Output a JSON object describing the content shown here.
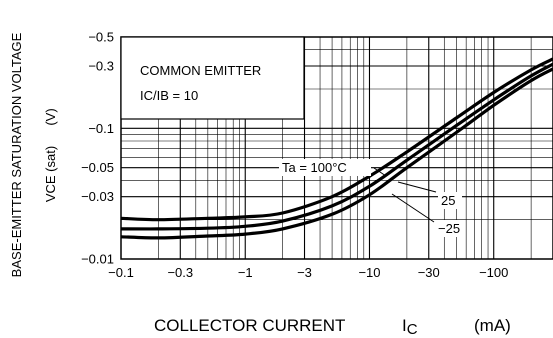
{
  "chart_data": {
    "type": "line",
    "xlabel": "COLLECTOR CURRENT",
    "xlabel_symbol": "IC",
    "xlabel_unit": "(mA)",
    "ylabel_line1": "BASE-EMITTER SATURATION VOLTAGE",
    "ylabel_line2": "VCE (sat)",
    "ylabel_unit": "(V)",
    "x_scale": "log",
    "y_scale": "log",
    "xlim": [
      -0.1,
      -300
    ],
    "ylim": [
      -0.01,
      -0.5
    ],
    "x_ticks": [
      -0.1,
      -0.3,
      -1,
      -3,
      -10,
      -30,
      -100
    ],
    "x_tick_labels": [
      "−0.1",
      "−0.3",
      "−1",
      "−3",
      "−10",
      "−30",
      "−100"
    ],
    "y_ticks": [
      -0.01,
      -0.03,
      -0.05,
      -0.1,
      -0.3,
      -0.5
    ],
    "y_tick_labels": [
      "−0.01",
      "−0.03",
      "−0.05",
      "−0.1",
      "−0.3",
      "−0.5"
    ],
    "grid": true,
    "annotation_box": {
      "line1": "COMMON EMITTER",
      "line2": "IC/IB = 10"
    },
    "series": [
      {
        "name": "Ta = 100°C",
        "x": [
          -0.1,
          -0.2,
          -0.5,
          -1,
          -2,
          -5,
          -10,
          -20,
          -50,
          -100,
          -200,
          -300
        ],
        "y": [
          -0.0205,
          -0.02,
          -0.0205,
          -0.021,
          -0.0225,
          -0.03,
          -0.043,
          -0.066,
          -0.12,
          -0.188,
          -0.28,
          -0.34
        ]
      },
      {
        "name": "25",
        "x": [
          -0.1,
          -0.2,
          -0.5,
          -1,
          -2,
          -5,
          -10,
          -20,
          -50,
          -100,
          -200,
          -300
        ],
        "y": [
          -0.017,
          -0.017,
          -0.0172,
          -0.0178,
          -0.0195,
          -0.0255,
          -0.036,
          -0.057,
          -0.105,
          -0.165,
          -0.252,
          -0.31
        ]
      },
      {
        "name": "−25",
        "x": [
          -0.1,
          -0.2,
          -0.5,
          -1,
          -2,
          -5,
          -10,
          -20,
          -50,
          -100,
          -200,
          -300
        ],
        "y": [
          -0.0148,
          -0.0145,
          -0.015,
          -0.0155,
          -0.017,
          -0.022,
          -0.031,
          -0.05,
          -0.093,
          -0.15,
          -0.232,
          -0.285
        ]
      }
    ]
  }
}
